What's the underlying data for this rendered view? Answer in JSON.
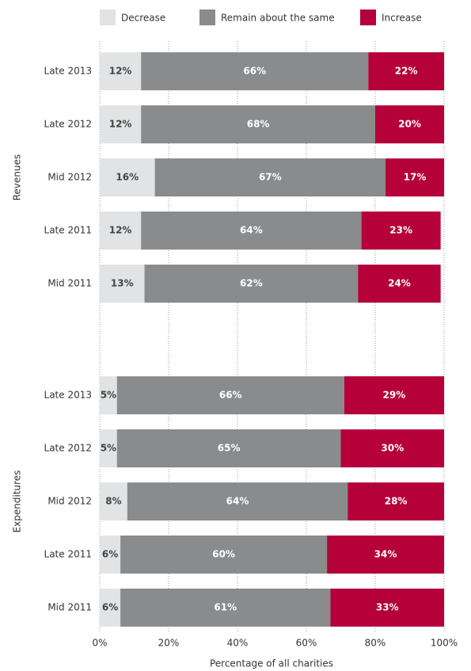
{
  "chart_data": {
    "type": "bar",
    "orientation": "horizontal",
    "stacked": true,
    "x_label": "Percentage of all charities",
    "xlim": [
      0,
      100
    ],
    "xticks": [
      {
        "value": 0,
        "label": "0%"
      },
      {
        "value": 20,
        "label": "20%"
      },
      {
        "value": 40,
        "label": "40%"
      },
      {
        "value": 60,
        "label": "60%"
      },
      {
        "value": 80,
        "label": "80%"
      },
      {
        "value": 100,
        "label": "100%"
      }
    ],
    "grid": true,
    "legend": "top",
    "groups": [
      {
        "name": "Revenues",
        "categories": [
          "Late 2013",
          "Late 2012",
          "Mid 2012",
          "Late 2011",
          "Mid 2011"
        ]
      },
      {
        "name": "Expenditures",
        "categories": [
          "Late 2013",
          "Late 2012",
          "Mid 2012",
          "Late 2011",
          "Mid 2011"
        ]
      }
    ],
    "series": [
      {
        "name": "Decrease",
        "color": "#e2e3e4",
        "label_color": "#444444",
        "values": [
          12,
          12,
          16,
          12,
          13,
          5,
          5,
          8,
          6,
          6
        ],
        "value_labels": [
          "12%",
          "12%",
          "16%",
          "12%",
          "13%",
          "5%",
          "5%",
          "8%",
          "6%",
          "6%"
        ]
      },
      {
        "name": "Remain about the same",
        "color": "#8a8b8d",
        "label_color": "#ffffff",
        "values": [
          66,
          68,
          67,
          64,
          62,
          66,
          65,
          64,
          60,
          61
        ],
        "value_labels": [
          "66%",
          "68%",
          "67%",
          "64%",
          "62%",
          "66%",
          "65%",
          "64%",
          "60%",
          "61%"
        ]
      },
      {
        "name": "Increase",
        "color": "#b5003a",
        "label_color": "#ffffff",
        "values": [
          22,
          20,
          17,
          23,
          24,
          29,
          30,
          28,
          34,
          33
        ],
        "value_labels": [
          "22%",
          "20%",
          "17%",
          "23%",
          "24%",
          "29%",
          "30%",
          "28%",
          "34%",
          "33%"
        ]
      }
    ]
  }
}
